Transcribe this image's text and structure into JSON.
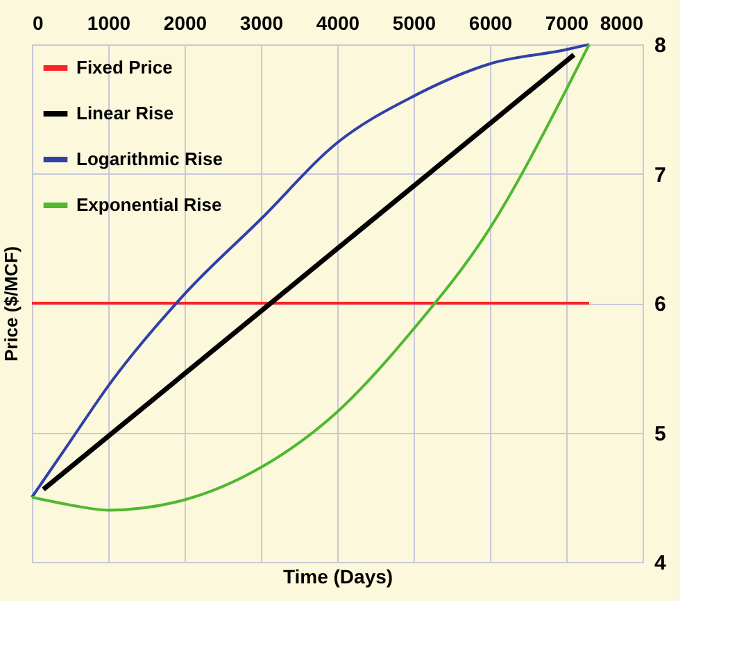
{
  "chart_data": {
    "type": "line",
    "xlabel": "Time (Days)",
    "ylabel": "Price ($/MCF)",
    "xlim": [
      0,
      8000
    ],
    "xticks": [
      0,
      1000,
      2000,
      3000,
      4000,
      5000,
      6000,
      7000,
      8000
    ],
    "ylim": [
      4,
      8
    ],
    "yticks": [
      4,
      5,
      6,
      7,
      8
    ],
    "grid": true,
    "legend": "top left",
    "marker": "none",
    "line_style": "solid",
    "series": [
      {
        "name": "Fixed Price",
        "color": "#ff2020",
        "x": [
          0,
          7300
        ],
        "values": [
          6,
          6
        ]
      },
      {
        "name": "Linear Rise",
        "color": "#000000",
        "x": [
          150,
          7100
        ],
        "values": [
          4.56,
          7.92
        ]
      },
      {
        "name": "Logarithmic Rise",
        "color": "#3040a8",
        "x": [
          0,
          500,
          1000,
          2000,
          3000,
          4000,
          5000,
          6000,
          7000,
          7300
        ],
        "values": [
          4.5,
          4.93,
          5.36,
          6.07,
          6.65,
          7.24,
          7.6,
          7.85,
          7.96,
          8
        ]
      },
      {
        "name": "Exponential Rise",
        "color": "#50b830",
        "x": [
          0,
          500,
          1000,
          2000,
          3000,
          4000,
          5000,
          6000,
          7000,
          7300
        ],
        "values": [
          4.5,
          4.44,
          4.4,
          4.48,
          4.73,
          5.16,
          5.8,
          6.58,
          7.65,
          8
        ]
      }
    ]
  }
}
